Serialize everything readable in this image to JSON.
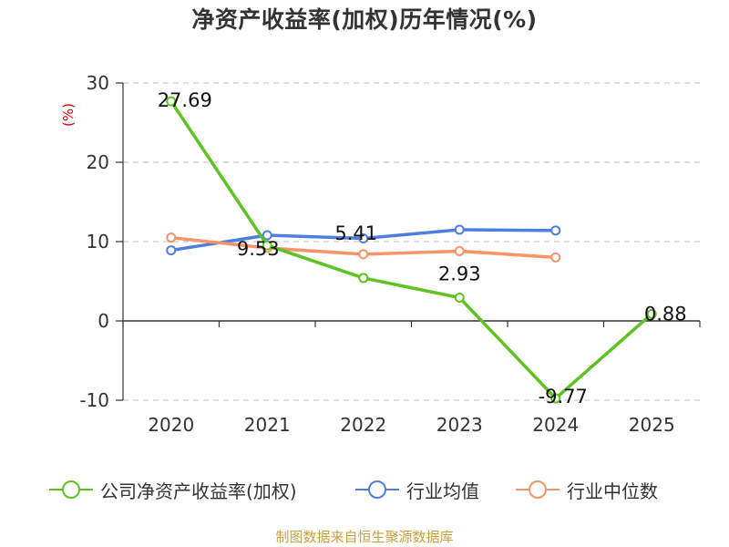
{
  "title": "净资产收益率(加权)历年情况(%)",
  "source": "制图数据来自恒生聚源数据库",
  "colors": {
    "company": "#5ec322",
    "industry_avg": "#4f7ee0",
    "industry_median": "#f79468",
    "axis_unit": "#dd0000",
    "grid": "#cccccc",
    "source_text": "#c8a040"
  },
  "legend": [
    {
      "label": "公司净资产收益率(加权)",
      "color": "#5ec322",
      "icon": "circle-line-icon"
    },
    {
      "label": "行业均值",
      "color": "#4f7ee0",
      "icon": "circle-line-icon"
    },
    {
      "label": "行业中位数",
      "color": "#f79468",
      "icon": "circle-line-icon"
    }
  ],
  "chart_data": {
    "type": "line",
    "title": "净资产收益率(加权)历年情况(%)",
    "ylabel": "(%)",
    "xlabel": "",
    "ylim": [
      -10,
      30
    ],
    "yticks": [
      -10,
      0,
      10,
      20,
      30
    ],
    "categories": [
      "2020",
      "2021",
      "2022",
      "2023",
      "2024",
      "2025"
    ],
    "grid": "horizontal dashed",
    "legend_position": "bottom",
    "series": [
      {
        "name": "公司净资产收益率(加权)",
        "color": "#5ec322",
        "values": [
          27.69,
          9.53,
          5.41,
          2.93,
          -9.77,
          0.88
        ],
        "labels": [
          "27.69",
          "9.53",
          "5.41",
          "2.93",
          "-9.77",
          "0.88"
        ]
      },
      {
        "name": "行业均值",
        "color": "#4f7ee0",
        "values": [
          8.9,
          10.8,
          10.4,
          11.5,
          11.4,
          null
        ]
      },
      {
        "name": "行业中位数",
        "color": "#f79468",
        "values": [
          10.5,
          9.2,
          8.4,
          8.8,
          8.0,
          null
        ]
      }
    ]
  }
}
